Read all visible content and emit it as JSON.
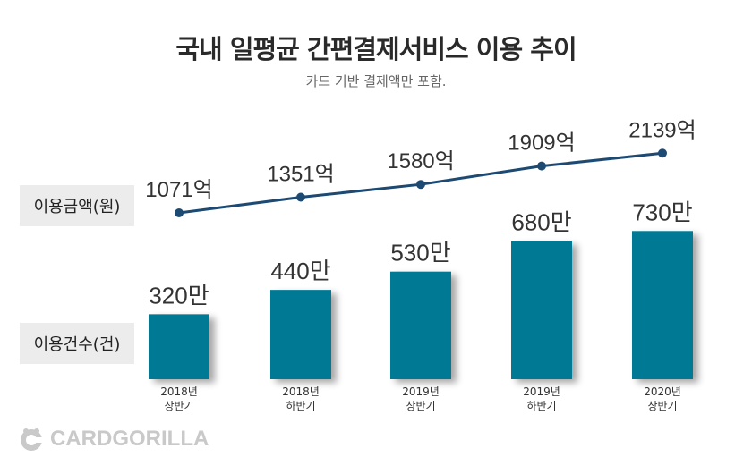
{
  "header": {
    "title": "국내 일평균 간편결제서비스 이용 추이",
    "subtitle": "카드 기반 결제액만 포함."
  },
  "axis_tags": {
    "amount": "이용금액(원)",
    "count": "이용건수(건)"
  },
  "logo": {
    "text": "CARDGORILLA"
  },
  "colors": {
    "bar": "#067a94",
    "line": "#1d4a73",
    "marker": "#1d4a73",
    "tag_bg": "#ececec"
  },
  "chart_data": {
    "type": "bar+line",
    "categories": [
      [
        "2018년",
        "상반기"
      ],
      [
        "2018년",
        "하반기"
      ],
      [
        "2019년",
        "상반기"
      ],
      [
        "2019년",
        "하반기"
      ],
      [
        "2020년",
        "상반기"
      ]
    ],
    "series": [
      {
        "name": "이용건수(건)",
        "type": "bar",
        "values": [
          320,
          440,
          530,
          680,
          730
        ],
        "labels": [
          "320만",
          "440만",
          "530만",
          "680만",
          "730만"
        ]
      },
      {
        "name": "이용금액(원)",
        "type": "line",
        "values": [
          1071,
          1351,
          1580,
          1909,
          2139
        ],
        "labels": [
          "1071억",
          "1351억",
          "1580억",
          "1909억",
          "2139억"
        ]
      }
    ]
  }
}
